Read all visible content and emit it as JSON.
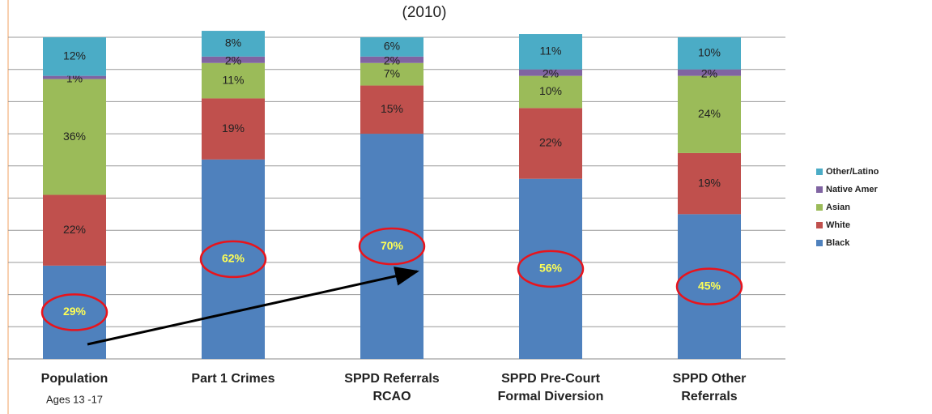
{
  "chart_data": {
    "type": "stacked_bar",
    "title": "(2010)",
    "categories": [
      [
        "Population"
      ],
      [
        "Part 1 Crimes"
      ],
      [
        "SPPD Referrals",
        "RCAO"
      ],
      [
        "SPPD Pre-Court",
        "Formal Diversion"
      ],
      [
        "SPPD Other",
        "Referrals"
      ]
    ],
    "annotations": [
      "Ages 13 -17"
    ],
    "series": [
      {
        "name": "Black",
        "color": "#4f81bd",
        "values": [
          29,
          62,
          70,
          56,
          45
        ],
        "value_labels": [
          "29%",
          "62%",
          "70%",
          "56%",
          "45%"
        ]
      },
      {
        "name": "White",
        "color": "#c0504d",
        "values": [
          22,
          19,
          15,
          22,
          19
        ],
        "value_labels": [
          "22%",
          "19%",
          "15%",
          "22%",
          "19%"
        ]
      },
      {
        "name": "Asian",
        "color": "#9bbb59",
        "values": [
          36,
          11,
          7,
          10,
          24
        ],
        "value_labels": [
          "36%",
          "11%",
          "7%",
          "10%",
          "24%"
        ]
      },
      {
        "name": "Native Amer",
        "color": "#8064a2",
        "values": [
          1,
          2,
          2,
          2,
          2
        ],
        "value_labels": [
          "1%",
          "2%",
          "2%",
          "2%",
          "2%"
        ]
      },
      {
        "name": "Other/Latino",
        "color": "#4bacc6",
        "values": [
          12,
          8,
          6,
          11,
          10
        ],
        "value_labels": [
          "12%",
          "8%",
          "6%",
          "11%",
          "10%"
        ]
      }
    ],
    "ylim": [
      0,
      100
    ],
    "yticks": [
      0,
      10,
      20,
      30,
      40,
      50,
      60,
      70,
      80,
      90,
      100
    ],
    "grid": true,
    "legend": "right"
  }
}
